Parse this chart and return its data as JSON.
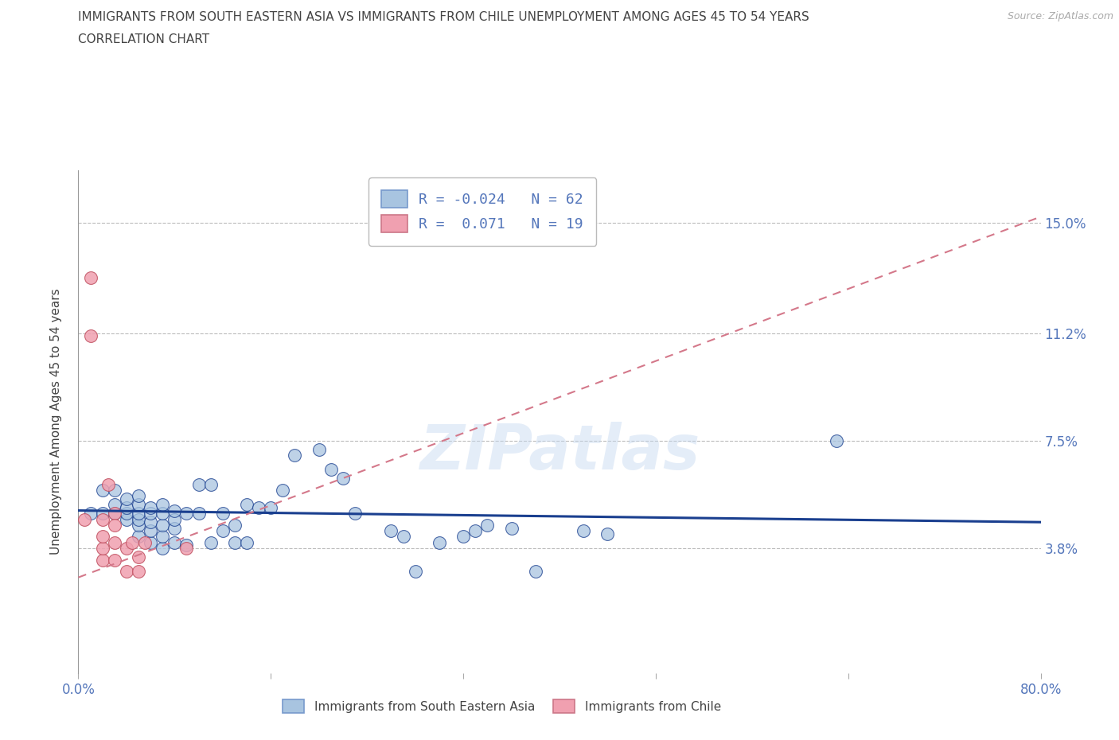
{
  "title_line1": "IMMIGRANTS FROM SOUTH EASTERN ASIA VS IMMIGRANTS FROM CHILE UNEMPLOYMENT AMONG AGES 45 TO 54 YEARS",
  "title_line2": "CORRELATION CHART",
  "source": "Source: ZipAtlas.com",
  "ylabel": "Unemployment Among Ages 45 to 54 years",
  "xlim": [
    0.0,
    0.8
  ],
  "ylim": [
    -0.005,
    0.168
  ],
  "yticks": [
    0.038,
    0.075,
    0.112,
    0.15
  ],
  "ytick_labels": [
    "3.8%",
    "7.5%",
    "11.2%",
    "15.0%"
  ],
  "xticks": [
    0.0,
    0.16,
    0.32,
    0.48,
    0.64,
    0.8
  ],
  "xtick_labels": [
    "0.0%",
    "",
    "",
    "",
    "",
    "80.0%"
  ],
  "blue_R": -0.024,
  "blue_N": 62,
  "pink_R": 0.071,
  "pink_N": 19,
  "blue_color": "#a8c4e0",
  "pink_color": "#f0a0b0",
  "blue_line_color": "#1a3f8f",
  "pink_line_color": "#d4788a",
  "watermark": "ZIPatlas",
  "blue_scatter_x": [
    0.01,
    0.02,
    0.02,
    0.03,
    0.03,
    0.03,
    0.04,
    0.04,
    0.04,
    0.04,
    0.05,
    0.05,
    0.05,
    0.05,
    0.05,
    0.05,
    0.06,
    0.06,
    0.06,
    0.06,
    0.06,
    0.07,
    0.07,
    0.07,
    0.07,
    0.07,
    0.08,
    0.08,
    0.08,
    0.08,
    0.09,
    0.09,
    0.1,
    0.1,
    0.11,
    0.11,
    0.12,
    0.12,
    0.13,
    0.13,
    0.14,
    0.14,
    0.15,
    0.16,
    0.17,
    0.18,
    0.2,
    0.21,
    0.22,
    0.23,
    0.26,
    0.27,
    0.28,
    0.3,
    0.32,
    0.33,
    0.34,
    0.36,
    0.38,
    0.42,
    0.44,
    0.63
  ],
  "blue_scatter_y": [
    0.05,
    0.05,
    0.058,
    0.05,
    0.053,
    0.058,
    0.048,
    0.05,
    0.052,
    0.055,
    0.042,
    0.046,
    0.048,
    0.05,
    0.053,
    0.056,
    0.04,
    0.044,
    0.047,
    0.05,
    0.052,
    0.038,
    0.042,
    0.046,
    0.05,
    0.053,
    0.04,
    0.045,
    0.048,
    0.051,
    0.039,
    0.05,
    0.05,
    0.06,
    0.04,
    0.06,
    0.044,
    0.05,
    0.04,
    0.046,
    0.04,
    0.053,
    0.052,
    0.052,
    0.058,
    0.07,
    0.072,
    0.065,
    0.062,
    0.05,
    0.044,
    0.042,
    0.03,
    0.04,
    0.042,
    0.044,
    0.046,
    0.045,
    0.03,
    0.044,
    0.043,
    0.075
  ],
  "pink_scatter_x": [
    0.005,
    0.01,
    0.01,
    0.02,
    0.02,
    0.02,
    0.02,
    0.025,
    0.03,
    0.03,
    0.03,
    0.03,
    0.04,
    0.04,
    0.045,
    0.05,
    0.05,
    0.055,
    0.09
  ],
  "pink_scatter_y": [
    0.048,
    0.131,
    0.111,
    0.034,
    0.038,
    0.042,
    0.048,
    0.06,
    0.05,
    0.046,
    0.04,
    0.034,
    0.038,
    0.03,
    0.04,
    0.035,
    0.03,
    0.04,
    0.038
  ],
  "blue_trend_x": [
    0.0,
    0.8
  ],
  "blue_trend_y_start": 0.051,
  "blue_trend_y_end": 0.047,
  "pink_trend_x": [
    0.0,
    0.8
  ],
  "pink_trend_y_start": 0.028,
  "pink_trend_y_end": 0.152,
  "background_color": "#ffffff",
  "grid_color": "#bbbbbb",
  "title_color": "#444444",
  "tick_label_color": "#5577bb"
}
